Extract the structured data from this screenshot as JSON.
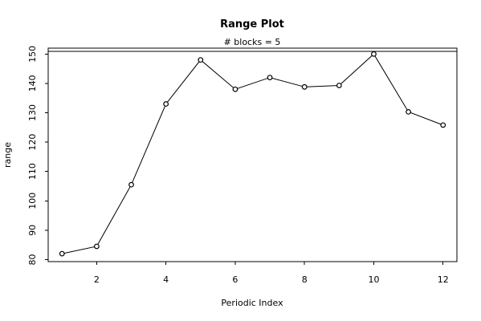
{
  "chart_data": {
    "type": "line",
    "title": "Range Plot",
    "subtitle": "# blocks =  5",
    "xlabel": "Periodic Index",
    "ylabel": "range",
    "x": [
      1,
      2,
      3,
      4,
      5,
      6,
      7,
      8,
      9,
      10,
      11,
      12
    ],
    "values": [
      82.0,
      84.5,
      105.5,
      133.0,
      148.0,
      138.0,
      142.0,
      138.8,
      139.3,
      150.0,
      130.3,
      125.8
    ],
    "x_ticks": [
      "2",
      "4",
      "6",
      "8",
      "10",
      "12"
    ],
    "y_ticks": [
      "80",
      "90",
      "100",
      "110",
      "120",
      "130",
      "140",
      "150"
    ],
    "xlim": [
      0.6,
      12.4
    ],
    "ylim": [
      79.3,
      152.0
    ],
    "grid": false,
    "legend": "none",
    "colors": {
      "line": "#000000",
      "point_fill": "#ffffff",
      "point_stroke": "#000000",
      "background": "#ffffff"
    }
  }
}
